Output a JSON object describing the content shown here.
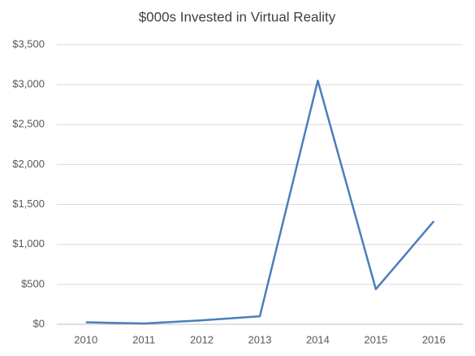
{
  "chart_data": {
    "type": "line",
    "title": "$000s Invested in Virtual Reality",
    "categories": [
      "2010",
      "2011",
      "2012",
      "2013",
      "2014",
      "2015",
      "2016"
    ],
    "values": [
      25,
      10,
      50,
      100,
      3050,
      440,
      1290
    ],
    "color": "#4a7ebb",
    "ylim": [
      0,
      3500
    ],
    "yticks": [
      {
        "value": 0,
        "label": "$0"
      },
      {
        "value": 500,
        "label": "$500"
      },
      {
        "value": 1000,
        "label": "$1,000"
      },
      {
        "value": 1500,
        "label": "$1,500"
      },
      {
        "value": 2000,
        "label": "$2,000"
      },
      {
        "value": 2500,
        "label": "$2,500"
      },
      {
        "value": 3000,
        "label": "$3,000"
      },
      {
        "value": 3500,
        "label": "$3,500"
      }
    ],
    "grid": true
  }
}
